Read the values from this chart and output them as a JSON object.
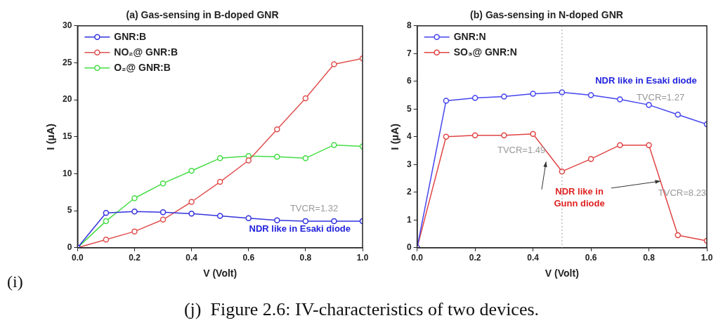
{
  "chart_data": [
    {
      "type": "line",
      "title": "(a) Gas-sensing in B-doped GNR",
      "xlabel": "V (Volt)",
      "ylabel": "I (µA)",
      "x": [
        0,
        0.1,
        0.2,
        0.3,
        0.4,
        0.5,
        0.6,
        0.7,
        0.8,
        0.9,
        1.0
      ],
      "series": [
        {
          "name": "GNR:B",
          "color": "#3333dd",
          "values": [
            0,
            4.7,
            4.9,
            4.8,
            4.6,
            4.3,
            4.0,
            3.7,
            3.6,
            3.6,
            3.6
          ]
        },
        {
          "name": "NO₂@ GNR:B",
          "color": "#e05050",
          "values": [
            0,
            1.1,
            2.2,
            3.8,
            6.2,
            8.9,
            11.8,
            16.0,
            20.2,
            24.8,
            25.6
          ]
        },
        {
          "name": "O₂@ GNR:B",
          "color": "#44dd44",
          "values": [
            0,
            3.6,
            6.7,
            8.7,
            10.4,
            12.1,
            12.4,
            12.3,
            12.1,
            13.9,
            13.7
          ]
        }
      ],
      "xlim": [
        0,
        1
      ],
      "ylim": [
        0,
        30
      ],
      "xticks": [
        {
          "value": 0,
          "label": "0.0"
        },
        {
          "value": 0.2,
          "label": "0.2"
        },
        {
          "value": 0.4,
          "label": "0.4"
        },
        {
          "value": 0.6,
          "label": "0.6"
        },
        {
          "value": 0.8,
          "label": "0.8"
        },
        {
          "value": 1,
          "label": "1.0"
        }
      ],
      "yticks": [
        0,
        5,
        10,
        15,
        20,
        25,
        30
      ],
      "grid": false,
      "legend": "top left",
      "marker": "circle",
      "annotations": [
        "TVCR=1.32",
        "NDR like in Esaki diode",
        "(i)",
        "(j)  Figure 2.6: IV-characteristics of two devices."
      ]
    },
    {
      "type": "line",
      "title": "(b) Gas-sensing in N-doped GNR",
      "xlabel": "V (Volt)",
      "ylabel": "I (µA)",
      "x": [
        0,
        0.1,
        0.2,
        0.3,
        0.4,
        0.5,
        0.6,
        0.7,
        0.8,
        0.9,
        1.0
      ],
      "series": [
        {
          "name": "GNR:N",
          "color": "#4444ee",
          "values": [
            0,
            5.3,
            5.4,
            5.45,
            5.55,
            5.6,
            5.5,
            5.35,
            5.15,
            4.8,
            4.45
          ]
        },
        {
          "name": "SO₃@ GNR:N",
          "color": "#e04444",
          "values": [
            0,
            4.0,
            4.05,
            4.05,
            4.1,
            2.75,
            3.2,
            3.7,
            3.7,
            0.45,
            0.25
          ]
        }
      ],
      "xlim": [
        0,
        1
      ],
      "ylim": [
        0,
        8
      ],
      "xticks": [
        {
          "value": 0,
          "label": "0.0"
        },
        {
          "value": 0.2,
          "label": "0.2"
        },
        {
          "value": 0.4,
          "label": "0.4"
        },
        {
          "value": 0.6,
          "label": "0.6"
        },
        {
          "value": 0.8,
          "label": "0.8"
        },
        {
          "value": 1,
          "label": "1.0"
        }
      ],
      "yticks": [
        0,
        1,
        2,
        3,
        4,
        5,
        6,
        7,
        8
      ],
      "grid": false,
      "legend": "top left",
      "marker": "circle",
      "ref_lines": [
        {
          "axis": "x",
          "value": 0.5,
          "line_style": "dotted",
          "color": "#999999"
        }
      ],
      "annotations": [
        "NDR like in Esaki diode",
        "TVCR=1.27",
        "TVCR=1.49",
        {
          "text": "NDR like in\nGunn diode",
          "x": 0.84,
          "y": 2.4
        },
        "TVCR=8.23"
      ]
    }
  ]
}
